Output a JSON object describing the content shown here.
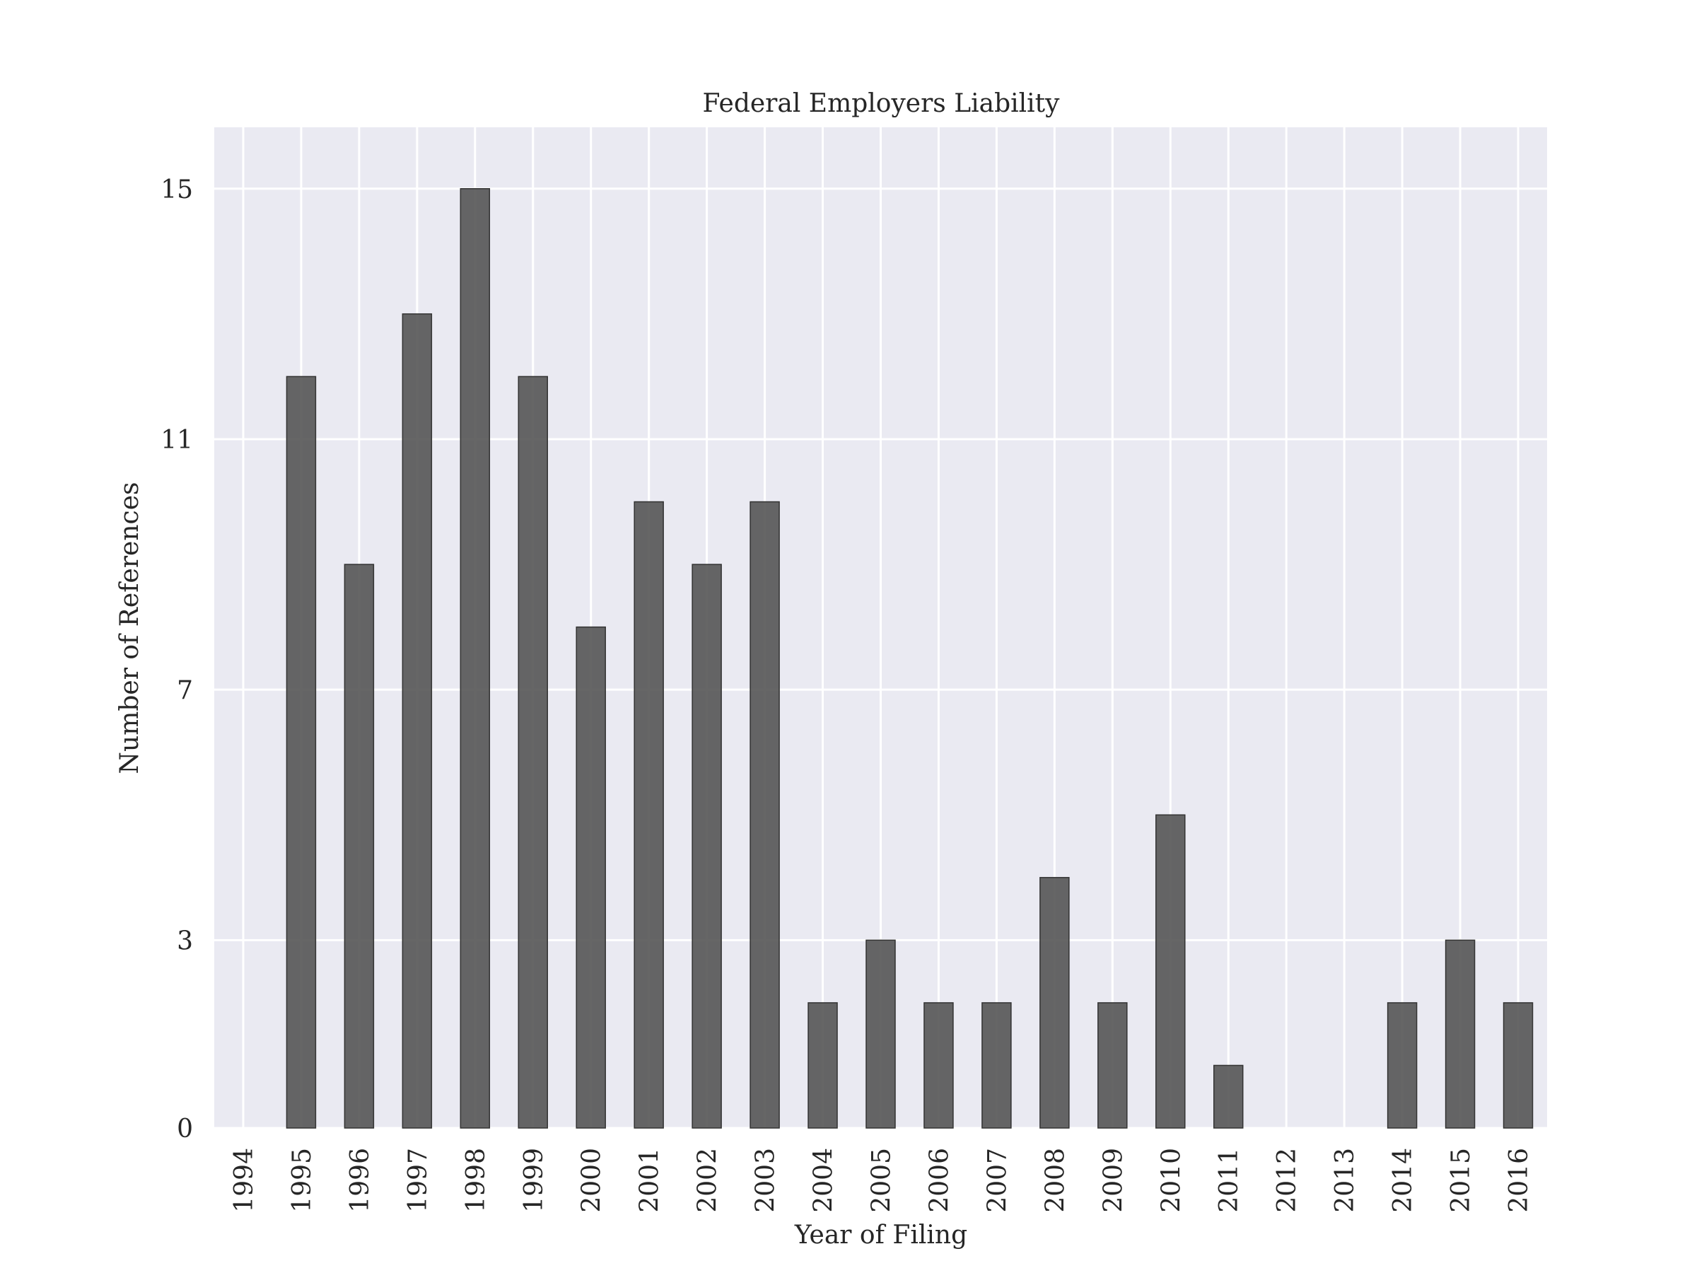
{
  "chart_data": {
    "type": "bar",
    "title": "Federal Employers Liability",
    "xlabel": "Year of Filing",
    "ylabel": "Number of References",
    "categories": [
      "1994",
      "1995",
      "1996",
      "1997",
      "1998",
      "1999",
      "2000",
      "2001",
      "2002",
      "2003",
      "2004",
      "2005",
      "2006",
      "2007",
      "2008",
      "2009",
      "2010",
      "2011",
      "2012",
      "2013",
      "2014",
      "2015",
      "2016"
    ],
    "values": [
      0,
      12,
      9,
      13,
      15,
      12,
      8,
      10,
      9,
      10,
      2,
      3,
      2,
      2,
      4,
      2,
      5,
      1,
      0,
      0,
      2,
      3,
      2
    ],
    "yticks": [
      0,
      3,
      7,
      11,
      15
    ],
    "ylim": [
      0,
      15.98
    ],
    "grid": true,
    "legend": "none",
    "colors": {
      "bar": "#555555",
      "bar_edge": "#333333",
      "plot_background": "#eaeaf2",
      "grid": "#ffffff",
      "text": "#262626"
    }
  }
}
